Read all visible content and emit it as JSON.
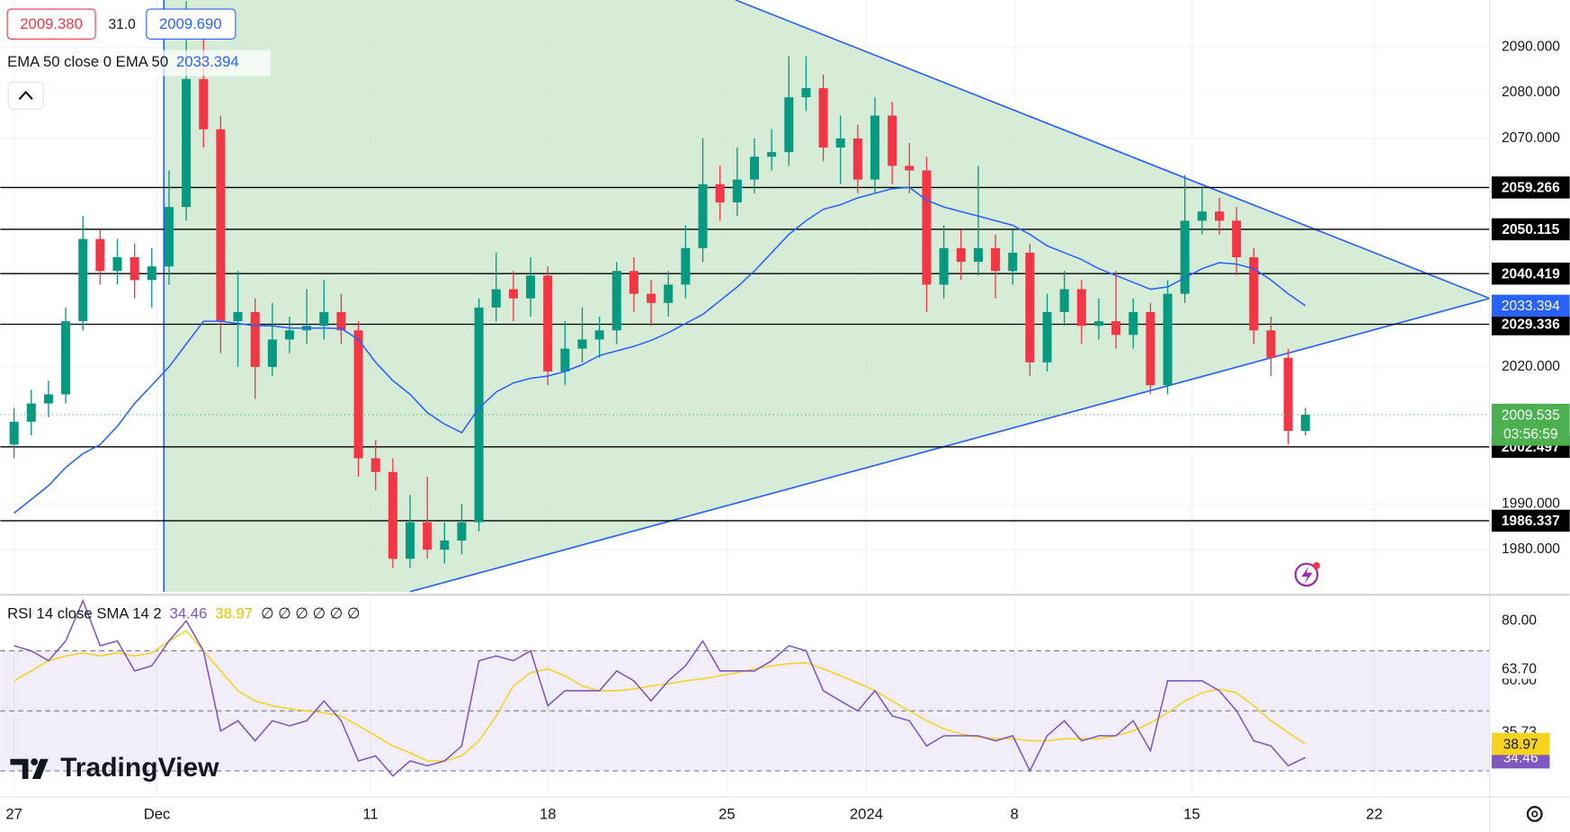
{
  "chart_data": [
    {
      "type": "candlestick",
      "header": {
        "bid": "2009.380",
        "spread": "31.0",
        "ask": "2009.690"
      },
      "ema_legend": "EMA 50 close 0 EMA 50",
      "xlim": [
        -0.8,
        85.7
      ],
      "xticks": [
        {
          "value": 0,
          "label": "27"
        },
        {
          "value": 8.3,
          "label": "Dec"
        },
        {
          "value": 20.7,
          "label": "11"
        },
        {
          "value": 31,
          "label": "18"
        },
        {
          "value": 41.4,
          "label": "25"
        },
        {
          "value": 49.5,
          "label": "2024"
        },
        {
          "value": 58.1,
          "label": "8"
        },
        {
          "value": 68.4,
          "label": "15"
        },
        {
          "value": 79,
          "label": "22"
        }
      ],
      "ylim": [
        1970.8,
        2100.3
      ],
      "yticks": [
        {
          "value": 2090,
          "label": "2090.000"
        },
        {
          "value": 2080,
          "label": "2080.000"
        },
        {
          "value": 2070,
          "label": "2070.000"
        },
        {
          "value": 2020,
          "label": "2020.000"
        },
        {
          "value": 1990,
          "label": "1990.000"
        },
        {
          "value": 1980,
          "label": "1980.000"
        }
      ],
      "grid": true,
      "up_color": "#089981",
      "down_color": "#f23645",
      "open": [
        2003,
        2008,
        2012,
        2014,
        2030,
        2048,
        2041,
        2044,
        2039,
        2042,
        2055,
        2083,
        2072,
        2030,
        2032,
        2020,
        2026,
        2028,
        2029,
        2032,
        2028,
        2000,
        1997,
        1978,
        1986,
        1980,
        1982,
        1986,
        2033,
        2037,
        2035,
        2040,
        2019,
        2024,
        2026,
        2028,
        2041,
        2036,
        2034,
        2038,
        2046,
        2060,
        2056,
        2061,
        2066,
        2067,
        2079,
        2081,
        2068,
        2070,
        2061,
        2075,
        2064,
        2063,
        2038,
        2046,
        2043,
        2046,
        2041,
        2045,
        2021,
        2032,
        2037,
        2029,
        2030,
        2027,
        2032,
        2016,
        2036,
        2052,
        2054,
        2052,
        2044,
        2028,
        2022,
        2006
      ],
      "high": [
        2011,
        2015,
        2017,
        2033,
        2053,
        2050,
        2048,
        2047,
        2046,
        2063,
        2100,
        2092,
        2075,
        2041,
        2035,
        2034,
        2031,
        2037,
        2039,
        2036,
        2030,
        2004,
        2000,
        1992,
        1996,
        1986,
        1990,
        2035,
        2045,
        2041,
        2044,
        2042,
        2030,
        2033,
        2031,
        2043,
        2044,
        2039,
        2041,
        2051,
        2070,
        2064,
        2068,
        2070,
        2072,
        2088,
        2088,
        2084,
        2075,
        2073,
        2079,
        2078,
        2069,
        2066,
        2051,
        2050,
        2064,
        2049,
        2050,
        2047,
        2036,
        2041,
        2039,
        2035,
        2041,
        2035,
        2034,
        2039,
        2062,
        2059,
        2057,
        2055,
        2046,
        2031,
        2024,
        2011
      ],
      "low": [
        2000,
        2005,
        2009,
        2012,
        2028,
        2038,
        2038,
        2035,
        2033,
        2038,
        2052,
        2068,
        2023,
        2020,
        2013,
        2018,
        2023,
        2025,
        2026,
        2025,
        1996,
        1993,
        1976,
        1976,
        1978,
        1977,
        1979,
        1984,
        2030,
        2030,
        2031,
        2016,
        2016,
        2021,
        2022,
        2025,
        2032,
        2029,
        2031,
        2035,
        2043,
        2052,
        2053,
        2058,
        2063,
        2064,
        2076,
        2065,
        2060,
        2058,
        2058,
        2060,
        2058,
        2032,
        2035,
        2039,
        2040,
        2035,
        2038,
        2018,
        2019,
        2029,
        2025,
        2026,
        2024,
        2024,
        2014,
        2014,
        2034,
        2049,
        2049,
        2040,
        2025,
        2018,
        2003,
        2005
      ],
      "close": [
        2008,
        2012,
        2014,
        2030,
        2048,
        2041,
        2044,
        2039,
        2042,
        2055,
        2083,
        2072,
        2030,
        2032,
        2020,
        2026,
        2028,
        2029,
        2032,
        2028,
        2000,
        1997,
        1978,
        1986,
        1980,
        1982,
        1986,
        2033,
        2037,
        2035,
        2040,
        2019,
        2024,
        2026,
        2028,
        2041,
        2036,
        2034,
        2038,
        2046,
        2060,
        2056,
        2061,
        2066,
        2067,
        2079,
        2081,
        2068,
        2070,
        2061,
        2075,
        2064,
        2063,
        2038,
        2046,
        2043,
        2046,
        2041,
        2045,
        2021,
        2032,
        2037,
        2029,
        2030,
        2027,
        2032,
        2016,
        2036,
        2052,
        2054,
        2052,
        2044,
        2028,
        2022,
        2006,
        2009.535
      ],
      "ema": {
        "name": "EMA 50",
        "color": "#2962ff",
        "values": [
          1988,
          1991,
          1994,
          1998,
          2001,
          2003,
          2007,
          2012,
          2016,
          2020,
          2025,
          2030,
          2030,
          2029.5,
          2029,
          2029,
          2028.5,
          2028.5,
          2028.5,
          2028.4,
          2026,
          2021,
          2017,
          2014,
          2010,
          2007.5,
          2005.6,
          2011,
          2014.5,
          2016.5,
          2017.5,
          2018,
          2019,
          2020.5,
          2022.5,
          2023.5,
          2024.5,
          2025.8,
          2027.5,
          2029.5,
          2031.5,
          2034.5,
          2037.5,
          2041,
          2045,
          2049,
          2052,
          2054.5,
          2055.5,
          2057,
          2058,
          2059,
          2059.3,
          2056.5,
          2055,
          2054,
          2053,
          2052,
          2051,
          2049,
          2046.5,
          2045,
          2043.5,
          2041.5,
          2040,
          2038.5,
          2037,
          2037.5,
          2039.5,
          2041.5,
          2042.8,
          2042.5,
          2041.5,
          2039,
          2036,
          2033.394
        ]
      },
      "levels": [
        2059.266,
        2050.115,
        2040.419,
        2029.336,
        2002.497,
        1986.337
      ],
      "level_color": "#000000",
      "last_price": 2009.535,
      "last_color": "#4caf50",
      "countdown": "03:56:59",
      "triangle": {
        "points": [
          [
            8.7,
            2100.3
          ],
          [
            41.9,
            2100.3
          ],
          [
            85.7,
            2035
          ],
          [
            23,
            1970.8
          ],
          [
            8.7,
            1970.8
          ]
        ],
        "fill": "#c8e6c9",
        "line_color": "#2962ff"
      },
      "vline": 8.7
    },
    {
      "type": "line",
      "legend": "RSI 14 close SMA 14 2",
      "empty_marks": "∅ ∅ ∅ ∅ ∅ ∅",
      "ylim": [
        21.3,
        87.7
      ],
      "yticks": [
        {
          "value": 80,
          "label": "80.00"
        },
        {
          "value": 60,
          "label": "60.00"
        }
      ],
      "bands": [
        70,
        50,
        30
      ],
      "band_color": "#7e57c2",
      "levels": [
        {
          "value": 63.7,
          "label": "63.70"
        },
        {
          "value": 35.73,
          "label": "35.73"
        }
      ],
      "series": [
        {
          "name": "RSI",
          "color": "#7e57c2",
          "values": [
            71.7,
            70,
            66.7,
            73.3,
            86.7,
            71.7,
            73.3,
            63.3,
            65,
            73.3,
            80,
            70,
            43.3,
            46.7,
            40,
            46.7,
            45,
            46.7,
            53.3,
            46.7,
            33.3,
            35,
            28.3,
            33.3,
            31.7,
            33.3,
            38.3,
            66.7,
            68.3,
            66.7,
            70,
            51.7,
            56.7,
            56.7,
            56.7,
            63.3,
            60,
            53.3,
            60,
            65,
            73.3,
            63.3,
            63.3,
            63.3,
            66.7,
            71.7,
            70,
            56.7,
            53.3,
            50,
            56.7,
            48.3,
            46.7,
            38.3,
            41.7,
            41.7,
            41.7,
            40,
            41.7,
            30,
            41.7,
            46.7,
            40,
            41.7,
            41.7,
            46.7,
            36.7,
            60,
            60,
            60,
            56.7,
            50,
            40,
            38.3,
            31.7,
            34.46
          ]
        },
        {
          "name": "SMA",
          "color": "#f7d21e",
          "values": [
            60,
            63.3,
            66.7,
            68.3,
            69.3,
            68.3,
            69.3,
            68.3,
            69.3,
            73.3,
            76.7,
            70,
            63.3,
            56.7,
            53.3,
            51.7,
            50.7,
            50,
            49.3,
            48.3,
            45,
            41.7,
            38.3,
            36,
            33.3,
            33.3,
            35,
            40,
            48.3,
            58.3,
            62.7,
            64,
            61.7,
            58.3,
            56.7,
            56.7,
            57.3,
            58.3,
            59,
            60,
            60.7,
            61.7,
            62.7,
            64,
            65,
            65.7,
            66,
            64,
            61.7,
            59.3,
            56.7,
            53.3,
            50,
            46.7,
            44,
            42.3,
            41.3,
            40.7,
            40.7,
            40,
            40,
            40.7,
            40.7,
            40.7,
            41.7,
            43.3,
            46,
            49.3,
            53.3,
            56,
            57.3,
            56,
            51.7,
            46.7,
            42.7,
            38.97
          ]
        }
      ]
    }
  ],
  "logo": "TradingView"
}
